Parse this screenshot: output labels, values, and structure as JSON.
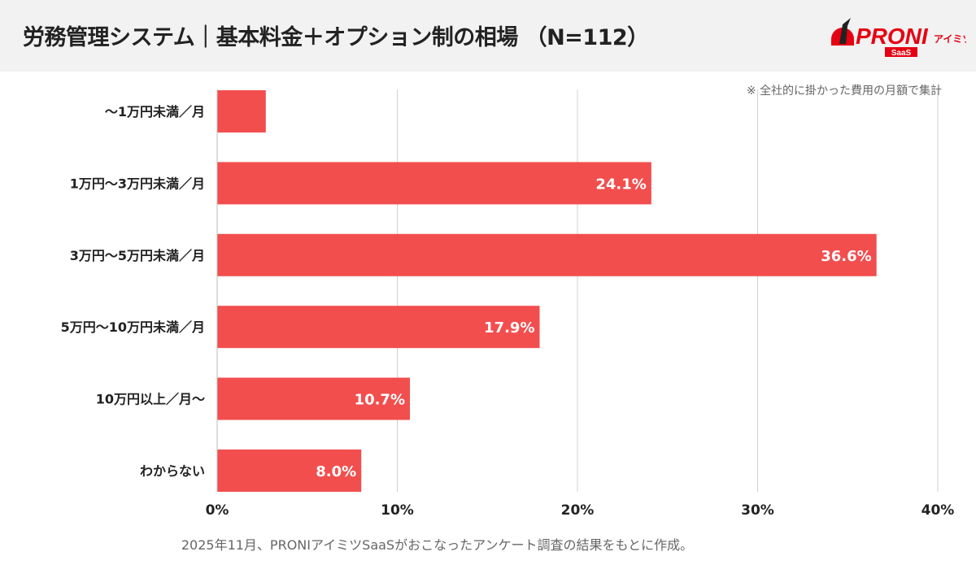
{
  "header": {
    "title": "労務管理システム｜基本料金＋オプション制の相場 （N=112）"
  },
  "logo": {
    "text": "PRONI",
    "sub": "アイミツ",
    "badge": "SaaS"
  },
  "note": "※ 全社的に掛かった費用の月額で集計",
  "footer": "2025年11月、PRONIアイミツSaaSがおこなったアンケート調査の結果をもとに作成。",
  "chart_data": {
    "type": "bar",
    "orientation": "horizontal",
    "categories": [
      "〜1万円未満／月",
      "1万円〜3万円未満／月",
      "3万円〜5万円未満／月",
      "5万円〜10万円未満／月",
      "10万円以上／月〜",
      "わからない"
    ],
    "values": [
      2.7,
      24.1,
      36.6,
      17.9,
      10.7,
      8.0
    ],
    "data_labels": [
      "",
      "24.1%",
      "36.6%",
      "17.9%",
      "10.7%",
      "8.0%"
    ],
    "xlim": [
      0,
      40
    ],
    "xticks": [
      "0%",
      "10%",
      "20%",
      "30%",
      "40%"
    ],
    "grid": true,
    "color": "#f24e4e"
  }
}
